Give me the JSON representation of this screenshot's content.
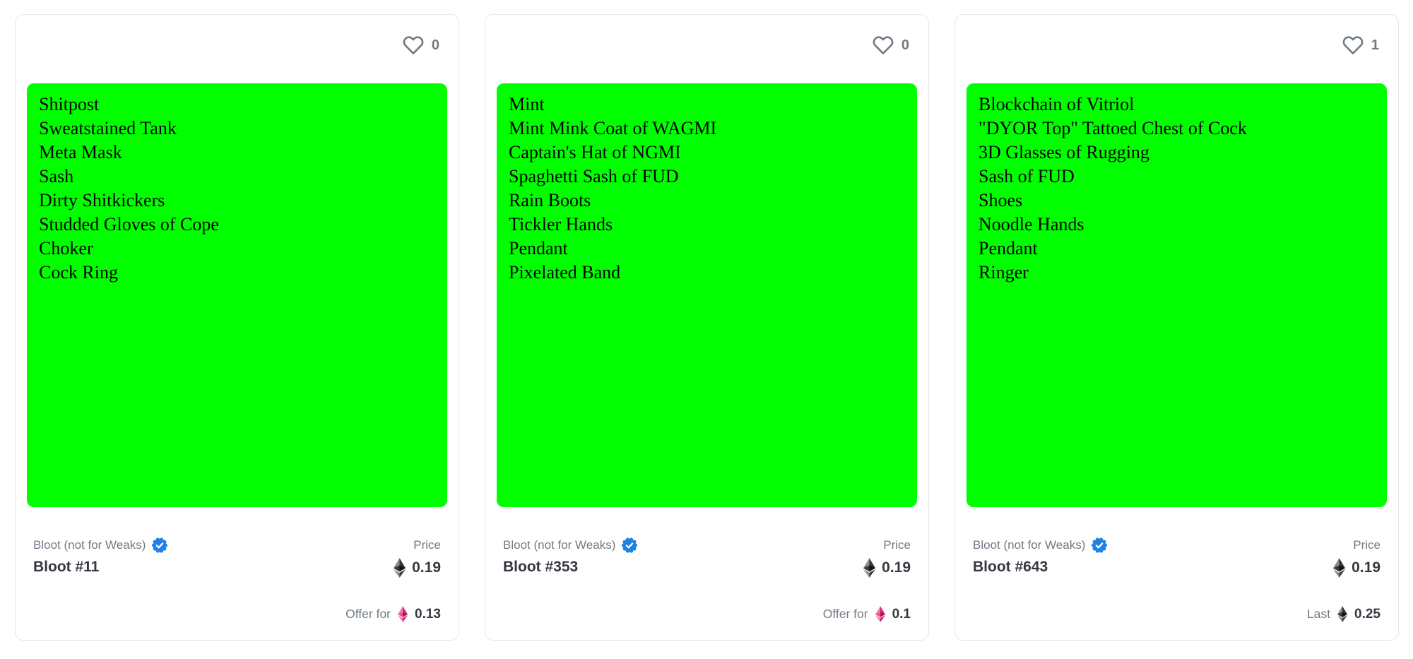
{
  "colors": {
    "media_background": "#01ff01",
    "verified_badge_blue": "#2081e2",
    "weth_pink": "#e0306e",
    "gray_text": "#707a83",
    "dark_text": "#353840",
    "card_border": "#e4e8ec"
  },
  "icons": {
    "favorite": "heart-outline",
    "verified": "blue-check-seal",
    "eth": "ethereum-diamond-gray",
    "weth": "ethereum-diamond-pink"
  },
  "cards": [
    {
      "favorites": "0",
      "traits": [
        "Shitpost",
        "Sweatstained Tank",
        "Meta Mask",
        "Sash",
        "Dirty Shitkickers",
        "Studded Gloves of Cope",
        "Choker",
        "Cock Ring"
      ],
      "collection": "Bloot (not for Weaks)",
      "name": "Bloot #11",
      "price_label": "Price",
      "price_value": "0.19",
      "bottom_label": "Offer for",
      "bottom_value": "0.13"
    },
    {
      "favorites": "0",
      "traits": [
        "Mint",
        "Mint Mink Coat of WAGMI",
        "Captain's Hat of NGMI",
        "Spaghetti Sash of FUD",
        "Rain Boots",
        "Tickler Hands",
        "Pendant",
        "Pixelated Band"
      ],
      "collection": "Bloot (not for Weaks)",
      "name": "Bloot #353",
      "price_label": "Price",
      "price_value": "0.19",
      "bottom_label": "Offer for",
      "bottom_value": "0.1"
    },
    {
      "favorites": "1",
      "traits": [
        "Blockchain of Vitriol",
        "\"DYOR Top\" Tattoed Chest of Cock",
        "3D Glasses of Rugging",
        "Sash of FUD",
        "Shoes",
        "Noodle Hands",
        "Pendant",
        "Ringer"
      ],
      "collection": "Bloot (not for Weaks)",
      "name": "Bloot #643",
      "price_label": "Price",
      "price_value": "0.19",
      "bottom_label": "Last",
      "bottom_value": "0.25"
    }
  ]
}
